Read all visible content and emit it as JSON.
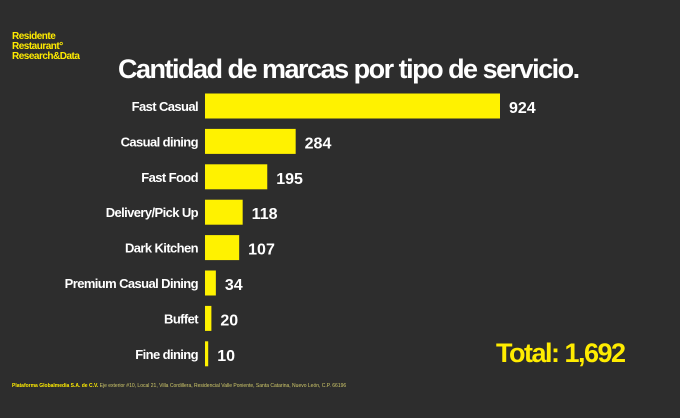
{
  "logo": {
    "line1": "Residente",
    "line2": "Restaurant°",
    "line3": "Research&Data"
  },
  "chart_data": {
    "type": "bar",
    "orientation": "horizontal",
    "title": "Cantidad de marcas por tipo de servicio.",
    "categories": [
      "Fast Casual",
      "Casual dining",
      "Fast Food",
      "Delivery/Pick Up",
      "Dark Kitchen",
      "Premium Casual Dining",
      "Buffet",
      "Fine dining"
    ],
    "values": [
      924,
      284,
      195,
      118,
      107,
      34,
      20,
      10
    ],
    "color": "#fff200",
    "xlabel": "",
    "ylabel": ""
  },
  "total": "Total: 1,692",
  "footer": {
    "company": "Plataforma Globalmedia S.A. de C.V.",
    "address": "Eje exterior #10, Local 21, Villa Cordillera, Residencial Valle Poniente, Santa Catarina, Nuevo León, C.P. 66196"
  }
}
